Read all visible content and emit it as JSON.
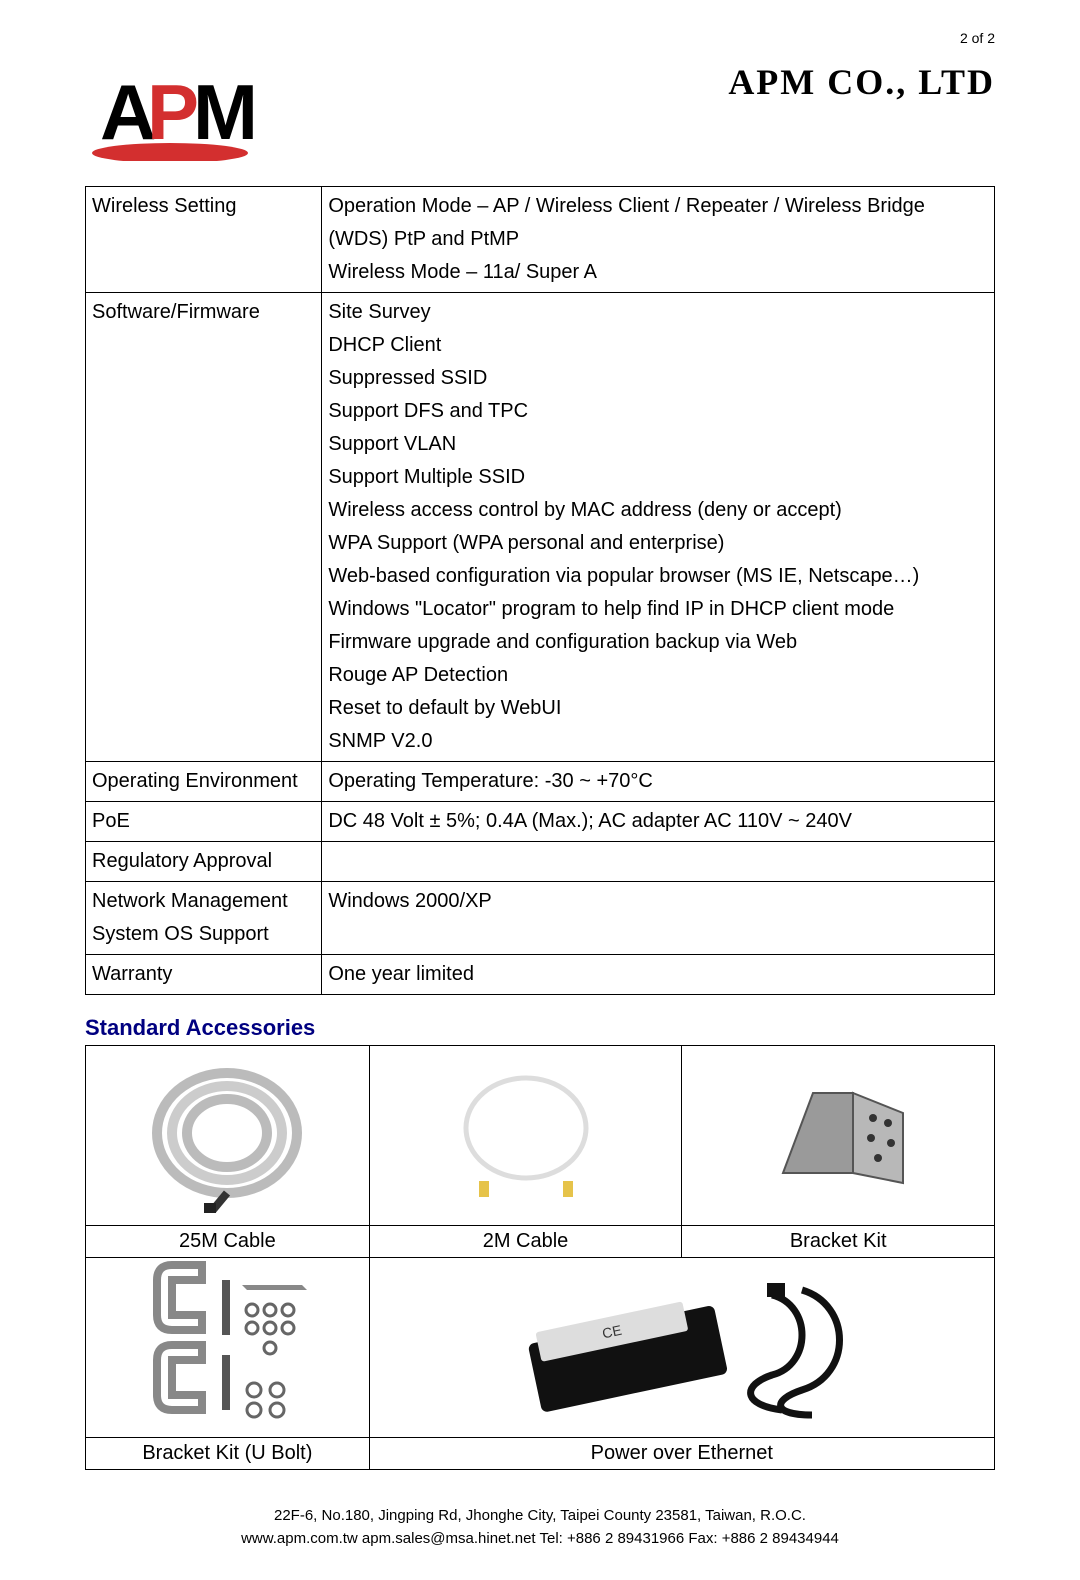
{
  "page_number": "2 of  2",
  "company_name": "APM  CO.,  LTD",
  "logo": {
    "text_a": "A",
    "text_p": "P",
    "text_m": "M",
    "color_black": "#000000",
    "color_red": "#d32f2f"
  },
  "colors": {
    "text": "#000000",
    "section_title": "#000080",
    "border": "#000000",
    "background": "#ffffff"
  },
  "fonts": {
    "body_family": "Arial, Helvetica, sans-serif",
    "body_size_pt": 15,
    "company_family": "Times New Roman",
    "company_size_pt": 27,
    "section_title_size_pt": 17
  },
  "spec_table": {
    "type": "table",
    "col_widths_pct": [
      26,
      74
    ],
    "rows": [
      {
        "label": "Wireless Setting",
        "lines": [
          "Operation Mode – AP / Wireless Client / Repeater / Wireless Bridge (WDS) PtP and PtMP",
          "Wireless Mode – 11a/ Super A"
        ]
      },
      {
        "label": "Software/Firmware",
        "lines": [
          "Site Survey",
          "DHCP Client",
          "Suppressed SSID",
          "Support DFS and TPC",
          "Support VLAN",
          "Support Multiple SSID",
          "Wireless access control by MAC address (deny or accept)",
          "WPA Support (WPA personal and enterprise)",
          "Web-based configuration via popular browser (MS IE, Netscape…)",
          "Windows \"Locator\" program to help find IP in DHCP client mode",
          "Firmware upgrade and configuration backup via Web",
          "Rouge AP Detection",
          "Reset to default by WebUI",
          "SNMP V2.0"
        ]
      },
      {
        "label": "Operating Environment",
        "lines": [
          "Operating Temperature: -30 ~ +70°C"
        ]
      },
      {
        "label": "PoE",
        "lines": [
          "DC 48 Volt ± 5%; 0.4A (Max.); AC adapter AC 110V ~ 240V"
        ]
      },
      {
        "label": "Regulatory Approval",
        "lines": [
          ""
        ]
      },
      {
        "label": "Network Management System OS Support",
        "lines": [
          "Windows 2000/XP"
        ]
      },
      {
        "label": "Warranty",
        "lines": [
          "One year limited"
        ]
      }
    ]
  },
  "accessories_title": "Standard Accessories",
  "accessories": {
    "type": "table",
    "row1_items": [
      {
        "caption": "25M Cable",
        "icon": "cable-coil"
      },
      {
        "caption": "2M Cable",
        "icon": "cable-short"
      },
      {
        "caption": "Bracket Kit",
        "icon": "bracket"
      }
    ],
    "row2_items": [
      {
        "caption": "Bracket Kit (U Bolt)",
        "icon": "ubolt",
        "colspan": 1
      },
      {
        "caption": "Power over Ethernet",
        "icon": "poe",
        "colspan": 2
      }
    ]
  },
  "footer": {
    "line1": "22F-6, No.180, Jingping Rd, Jhonghe City, Taipei County 23581, Taiwan, R.O.C.",
    "line2": "www.apm.com.tw   apm.sales@msa.hinet.net   Tel: +886 2 89431966   Fax: +886 2 89434944"
  }
}
